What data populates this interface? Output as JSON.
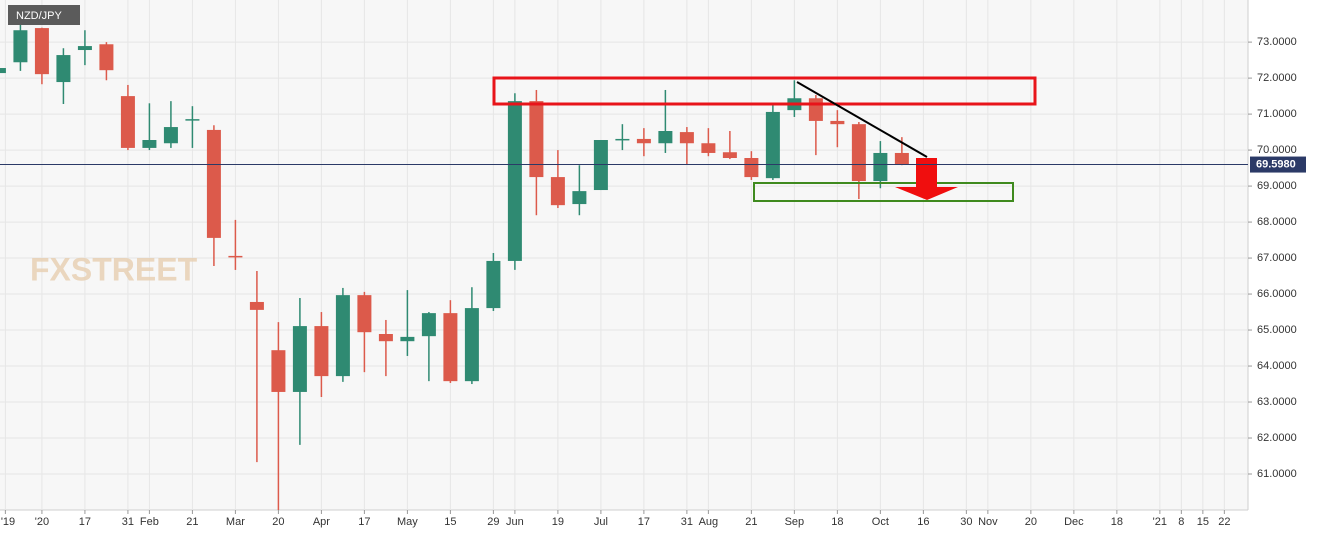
{
  "chart_data": {
    "type": "candlestick",
    "title": "NZD/JPY",
    "watermark": "FXSTREET",
    "up_color": "#2f8a72",
    "down_color": "#dc5a4b",
    "grid": true,
    "x": [
      -2,
      -1,
      0,
      1,
      2,
      3,
      4,
      5,
      6,
      7,
      8,
      9,
      10,
      11,
      12,
      13,
      14,
      15,
      16,
      17,
      18,
      19,
      20,
      21,
      22,
      23,
      24,
      25,
      26,
      27,
      28,
      29,
      30,
      31,
      32,
      33,
      34,
      35,
      36,
      37,
      38,
      39,
      40
    ],
    "open": [
      72.14,
      72.44,
      73.39,
      71.89,
      72.78,
      72.94,
      71.5,
      70.06,
      70.19,
      70.83,
      70.56,
      67.06,
      65.78,
      64.44,
      63.28,
      65.11,
      63.72,
      65.97,
      64.89,
      64.69,
      64.83,
      65.47,
      63.58,
      65.61,
      66.92,
      71.36,
      69.25,
      68.5,
      68.89,
      70.28,
      70.31,
      70.19,
      70.5,
      70.19,
      69.94,
      69.78,
      69.22,
      71.11,
      71.44,
      70.81,
      70.72,
      69.14,
      69.92
    ],
    "high": [
      72.5,
      73.6,
      73.4,
      72.83,
      73.33,
      73.0,
      71.81,
      71.3,
      71.36,
      71.22,
      70.69,
      68.06,
      66.64,
      65.22,
      65.89,
      65.5,
      66.17,
      66.06,
      65.28,
      66.11,
      65.5,
      65.83,
      66.19,
      67.14,
      71.58,
      71.67,
      70.0,
      69.58,
      70.28,
      70.72,
      70.61,
      71.67,
      70.64,
      70.61,
      70.53,
      69.97,
      71.28,
      71.94,
      71.53,
      71.11,
      70.78,
      70.25,
      70.36
    ],
    "low": [
      71.8,
      72.2,
      71.83,
      71.28,
      72.36,
      71.94,
      70.0,
      70.0,
      70.06,
      70.06,
      66.78,
      66.67,
      61.33,
      60.0,
      61.81,
      63.14,
      63.56,
      63.83,
      63.72,
      64.28,
      63.58,
      63.53,
      63.5,
      65.53,
      66.67,
      68.19,
      68.39,
      68.19,
      68.89,
      70.0,
      69.83,
      69.92,
      69.61,
      69.83,
      69.75,
      69.17,
      69.17,
      70.92,
      69.86,
      70.08,
      68.64,
      68.94,
      69.58
    ],
    "close": [
      72.28,
      73.33,
      72.11,
      72.64,
      72.89,
      72.22,
      70.06,
      70.28,
      70.64,
      70.86,
      67.56,
      67.03,
      65.56,
      63.28,
      65.11,
      63.72,
      65.97,
      64.94,
      64.69,
      64.81,
      65.47,
      63.58,
      65.61,
      66.92,
      71.36,
      69.25,
      68.47,
      68.86,
      70.28,
      70.31,
      70.19,
      70.53,
      70.19,
      69.92,
      69.78,
      69.25,
      71.06,
      71.44,
      70.81,
      70.72,
      69.14,
      69.92,
      69.61
    ],
    "last_price": {
      "value": 69.598,
      "label": "69.5980"
    },
    "xlim": [
      -1.95,
      56.1
    ],
    "ylim": [
      60.0,
      74.17
    ],
    "yticks": [
      {
        "value": 61,
        "label": "61.0000"
      },
      {
        "value": 62,
        "label": "62.0000"
      },
      {
        "value": 63,
        "label": "63.0000"
      },
      {
        "value": 64,
        "label": "64.0000"
      },
      {
        "value": 65,
        "label": "65.0000"
      },
      {
        "value": 66,
        "label": "66.0000"
      },
      {
        "value": 67,
        "label": "67.0000"
      },
      {
        "value": 68,
        "label": "68.0000"
      },
      {
        "value": 69,
        "label": "69.0000"
      },
      {
        "value": 70,
        "label": "70.0000"
      },
      {
        "value": 71,
        "label": "71.0000"
      },
      {
        "value": 72,
        "label": "72.0000"
      },
      {
        "value": 73,
        "label": "73.0000"
      }
    ],
    "xticks": [
      {
        "value": -1.7,
        "label": "'19"
      },
      {
        "value": 0,
        "label": "'20"
      },
      {
        "value": 2,
        "label": "17"
      },
      {
        "value": 4,
        "label": "31"
      },
      {
        "value": 5,
        "label": "Feb"
      },
      {
        "value": 7,
        "label": "21"
      },
      {
        "value": 9,
        "label": "Mar"
      },
      {
        "value": 11,
        "label": "20"
      },
      {
        "value": 13,
        "label": "Apr"
      },
      {
        "value": 15,
        "label": "17"
      },
      {
        "value": 17,
        "label": "May"
      },
      {
        "value": 19,
        "label": "15"
      },
      {
        "value": 21,
        "label": "29"
      },
      {
        "value": 22,
        "label": "Jun"
      },
      {
        "value": 24,
        "label": "19"
      },
      {
        "value": 26,
        "label": "Jul"
      },
      {
        "value": 28,
        "label": "17"
      },
      {
        "value": 30,
        "label": "31"
      },
      {
        "value": 31,
        "label": "Aug"
      },
      {
        "value": 33,
        "label": "21"
      },
      {
        "value": 35,
        "label": "Sep"
      },
      {
        "value": 37,
        "label": "18"
      },
      {
        "value": 39,
        "label": "Oct"
      },
      {
        "value": 41,
        "label": "16"
      },
      {
        "value": 43,
        "label": "30"
      },
      {
        "value": 44,
        "label": "Nov"
      },
      {
        "value": 46,
        "label": "20"
      },
      {
        "value": 48,
        "label": "Dec"
      },
      {
        "value": 50,
        "label": "18"
      },
      {
        "value": 52,
        "label": "'21"
      },
      {
        "value": 53,
        "label": "8"
      },
      {
        "value": 54,
        "label": "15"
      },
      {
        "value": 55,
        "label": "22"
      }
    ]
  }
}
